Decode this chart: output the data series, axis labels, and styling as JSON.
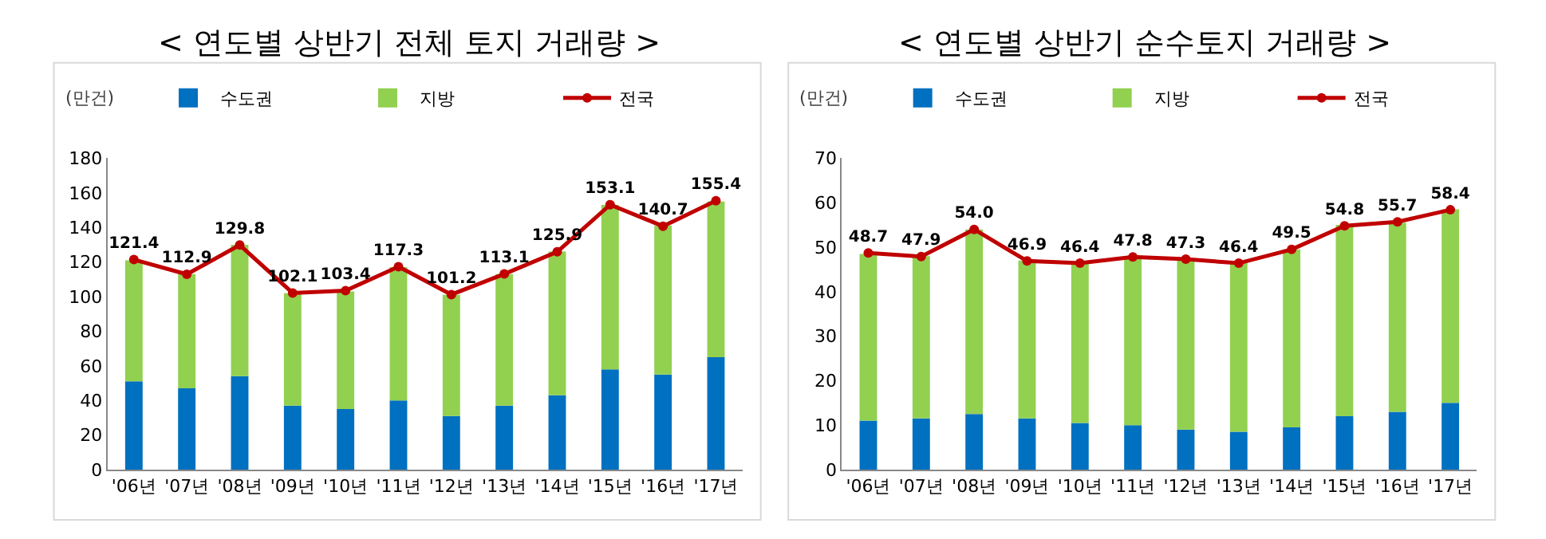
{
  "chart_data": [
    {
      "type": "bar",
      "title": "< 연도별 상반기 전체 토지 거래량 >",
      "ylabel": "(만건)",
      "categories": [
        "'06년",
        "'07년",
        "'08년",
        "'09년",
        "'10년",
        "'11년",
        "'12년",
        "'13년",
        "'14년",
        "'15년",
        "'16년",
        "'17년"
      ],
      "stacked": true,
      "ylim": [
        0,
        180
      ],
      "yticks": [
        0,
        20,
        40,
        60,
        80,
        100,
        120,
        140,
        160,
        180
      ],
      "grid": false,
      "legend": "top",
      "marker": "circle",
      "line_style": "solid",
      "series": [
        {
          "name": "수도권",
          "color": "#0070c0",
          "values": [
            51,
            47,
            54,
            37,
            35,
            40,
            31,
            37,
            43,
            58,
            55,
            65
          ]
        },
        {
          "name": "지방",
          "color": "#92d050",
          "values": [
            70,
            66,
            76,
            65,
            68,
            77,
            70,
            76,
            83,
            95,
            86,
            90
          ]
        },
        {
          "name": "전국",
          "type": "line",
          "color": "#c00000",
          "values": [
            121.4,
            112.9,
            129.8,
            102.1,
            103.4,
            117.3,
            101.2,
            113.1,
            125.9,
            153.1,
            140.7,
            155.4
          ],
          "value_labels": [
            "121.4",
            "112.9",
            "129.8",
            "102.1",
            "103.4",
            "117.3",
            "101.2",
            "113.1",
            "125.9",
            "153.1",
            "140.7",
            "155.4"
          ]
        }
      ]
    },
    {
      "type": "bar",
      "title": "< 연도별 상반기 순수토지 거래량 >",
      "ylabel": "(만건)",
      "categories": [
        "'06년",
        "'07년",
        "'08년",
        "'09년",
        "'10년",
        "'11년",
        "'12년",
        "'13년",
        "'14년",
        "'15년",
        "'16년",
        "'17년"
      ],
      "stacked": true,
      "ylim": [
        0,
        70
      ],
      "yticks": [
        0,
        10,
        20,
        30,
        40,
        50,
        60,
        70
      ],
      "grid": false,
      "legend": "top",
      "marker": "circle",
      "line_style": "solid",
      "series": [
        {
          "name": "수도권",
          "color": "#0070c0",
          "values": [
            11,
            11.5,
            12.5,
            11.5,
            10.5,
            10,
            9,
            8.5,
            9.5,
            12,
            13,
            15
          ]
        },
        {
          "name": "지방",
          "color": "#92d050",
          "values": [
            37.5,
            36.5,
            41.5,
            35.5,
            36,
            38,
            38.5,
            38,
            40,
            43,
            42.5,
            43.5
          ]
        },
        {
          "name": "전국",
          "type": "line",
          "color": "#c00000",
          "values": [
            48.7,
            47.9,
            54.0,
            46.9,
            46.4,
            47.8,
            47.3,
            46.4,
            49.5,
            54.8,
            55.7,
            58.4
          ],
          "value_labels": [
            "48.7",
            "47.9",
            "54.0",
            "46.9",
            "46.4",
            "47.8",
            "47.3",
            "46.4",
            "49.5",
            "54.8",
            "55.7",
            "58.4"
          ]
        }
      ]
    }
  ]
}
